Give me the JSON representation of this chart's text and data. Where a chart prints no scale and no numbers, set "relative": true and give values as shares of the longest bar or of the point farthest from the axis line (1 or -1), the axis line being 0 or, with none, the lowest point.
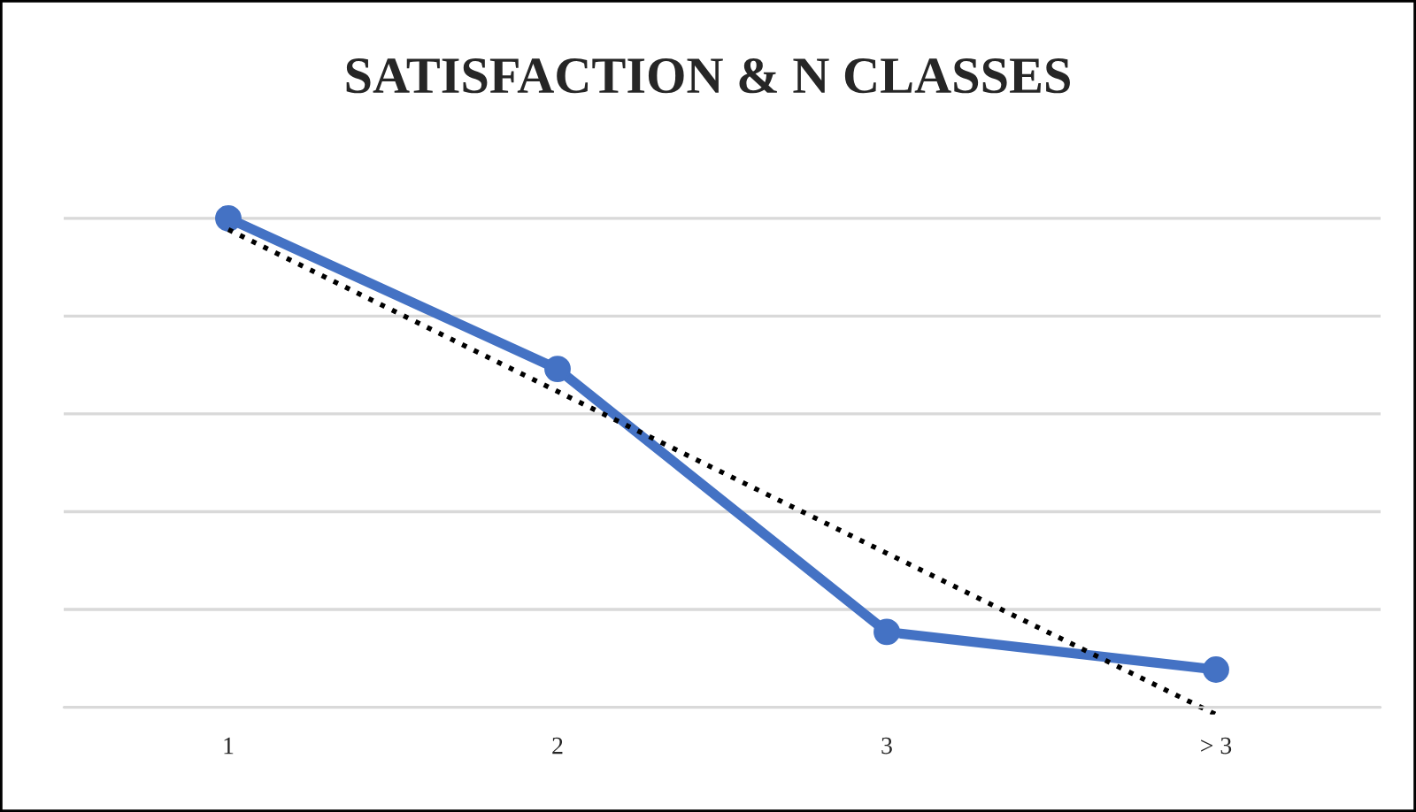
{
  "chart_data": {
    "type": "line",
    "title": "SATISFACTION & N CLASSES",
    "categories": [
      "1",
      "2",
      "3",
      "> 3"
    ],
    "relative": true,
    "grid": "y",
    "legend": false,
    "series": [
      {
        "color": "#4472c4",
        "values": [
          1,
          0.692,
          0.154,
          0.077
        ],
        "marker": "circle",
        "line_style": "solid"
      },
      {
        "type": "line",
        "color": "#000000",
        "values": [
          0.977,
          0.646,
          0.315,
          -0.015
        ],
        "marker": "none",
        "line_style": "dotted"
      }
    ]
  }
}
